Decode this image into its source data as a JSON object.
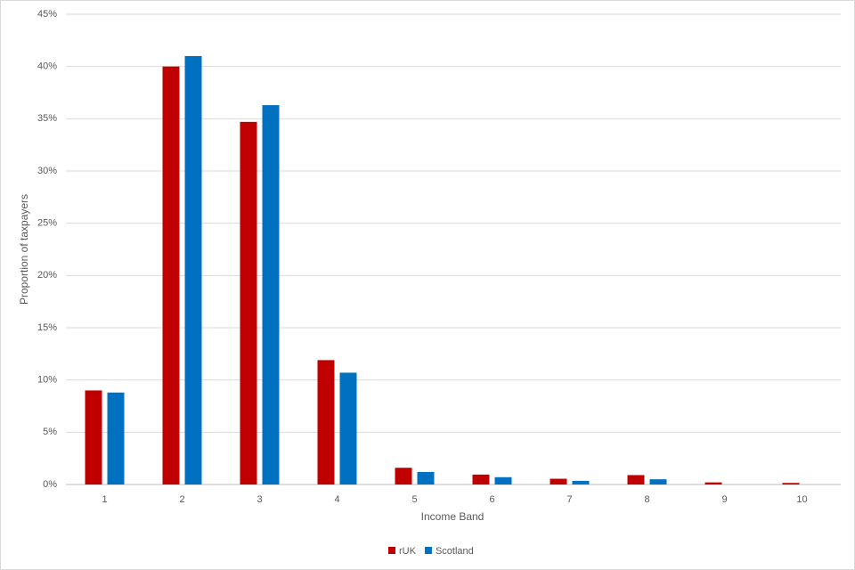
{
  "chart_data": {
    "type": "bar",
    "x_label": "Income Band",
    "y_label": "Proportion of taxpayers",
    "categories": [
      "1",
      "2",
      "3",
      "4",
      "5",
      "6",
      "7",
      "8",
      "9",
      "10"
    ],
    "series": [
      {
        "name": "rUK",
        "color": "#c00000",
        "values": [
          9.0,
          40.0,
          34.7,
          11.9,
          1.6,
          0.95,
          0.55,
          0.9,
          0.2,
          0.15
        ]
      },
      {
        "name": "Scotland",
        "color": "#0070c0",
        "values": [
          8.8,
          41.0,
          36.3,
          10.7,
          1.2,
          0.7,
          0.35,
          0.5,
          0,
          0
        ]
      }
    ],
    "ylim": [
      0,
      45
    ],
    "yticks": [
      {
        "value": 0,
        "label": "0%"
      },
      {
        "value": 5,
        "label": "5%"
      },
      {
        "value": 10,
        "label": "10%"
      },
      {
        "value": 15,
        "label": "15%"
      },
      {
        "value": 20,
        "label": "20%"
      },
      {
        "value": 25,
        "label": "25%"
      },
      {
        "value": 30,
        "label": "30%"
      },
      {
        "value": 35,
        "label": "35%"
      },
      {
        "value": 40,
        "label": "40%"
      },
      {
        "value": 45,
        "label": "45%"
      }
    ],
    "grid": true,
    "legend": "bottom"
  }
}
